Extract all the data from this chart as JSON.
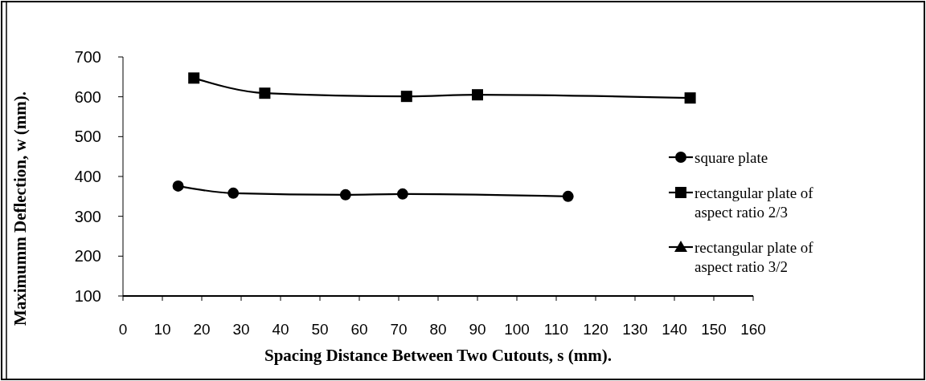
{
  "chart_data": {
    "type": "line",
    "xlabel": "Spacing Distance Between Two Cutouts, s (mm).",
    "ylabel": "Maximumm Deflection, w (mm).",
    "xlim": [
      0,
      160
    ],
    "xticks": [
      0,
      10,
      20,
      30,
      40,
      50,
      60,
      70,
      80,
      90,
      100,
      110,
      120,
      130,
      140,
      150,
      160
    ],
    "ylim": [
      100,
      700
    ],
    "yticks": [
      100,
      200,
      300,
      400,
      500,
      600,
      700
    ],
    "grid": false,
    "legend": "right",
    "line_style": "solid",
    "series": [
      {
        "name": "square plate",
        "color": "#000000",
        "marker": "circle",
        "x": [
          14,
          28,
          56.5,
          71,
          113
        ],
        "values": [
          376,
          358,
          354,
          356,
          350
        ]
      },
      {
        "name": "rectangular plate of aspect ratio 2/3",
        "color": "#000000",
        "marker": "square",
        "x": [
          18,
          36,
          72,
          90,
          144
        ],
        "values": [
          647,
          609,
          601,
          605,
          597
        ]
      },
      {
        "name": "rectangular plate of aspect ratio 3/2",
        "color": "#000000",
        "marker": "triangle"
      }
    ]
  }
}
